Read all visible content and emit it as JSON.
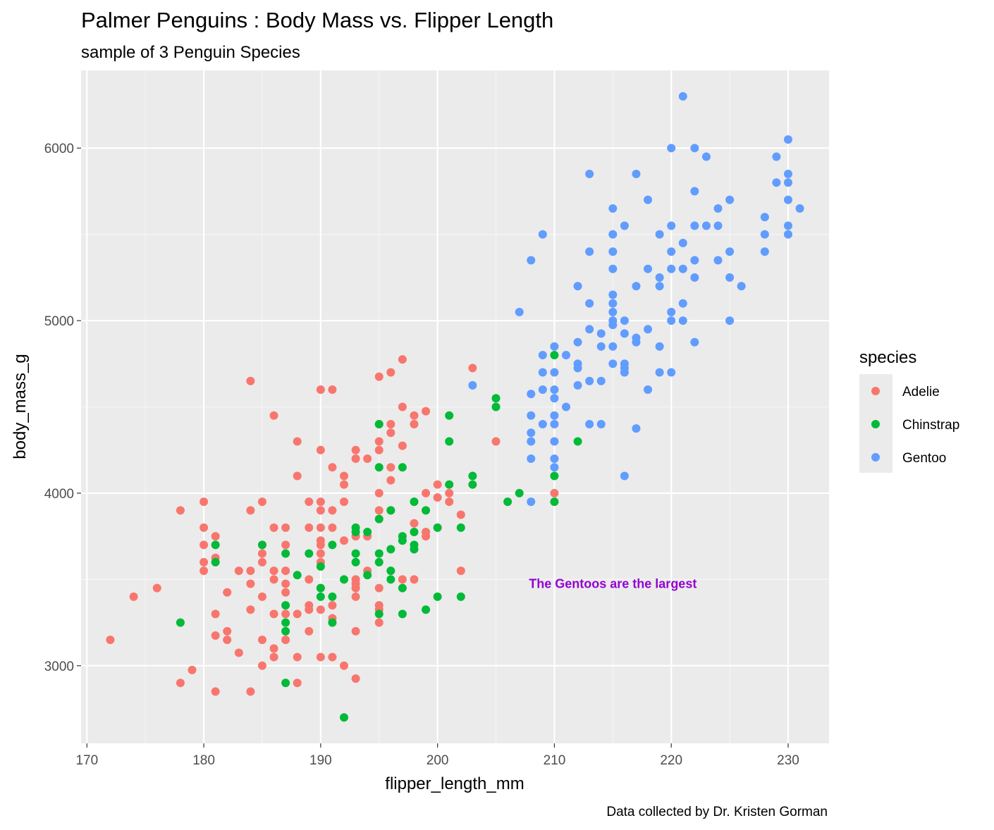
{
  "chart_data": {
    "type": "scatter",
    "title": "Palmer Penguins : Body Mass vs. Flipper Length",
    "subtitle": "sample of 3 Penguin Species",
    "xlabel": "flipper_length_mm",
    "ylabel": "body_mass_g",
    "caption": "Data collected by Dr. Kristen Gorman",
    "xlim": [
      169.5,
      233.5
    ],
    "ylim": [
      2550,
      6450
    ],
    "x_ticks": [
      170,
      180,
      190,
      200,
      210,
      220,
      230
    ],
    "y_ticks": [
      3000,
      4000,
      5000,
      6000
    ],
    "grid": true,
    "legend": {
      "title": "species",
      "placement": "right",
      "entries": [
        "Adelie",
        "Chinstrap",
        "Gentoo"
      ]
    },
    "annotation": {
      "text": "The Gentoos are the largest",
      "x": 215,
      "y": 3480,
      "color": "#9400D3"
    },
    "series": [
      {
        "name": "Adelie",
        "color": "#F8766D",
        "points": [
          [
            172,
            3150
          ],
          [
            174,
            3400
          ],
          [
            176,
            3450
          ],
          [
            178,
            3900
          ],
          [
            178,
            2900
          ],
          [
            179,
            2975
          ],
          [
            180,
            3950
          ],
          [
            180,
            3800
          ],
          [
            180,
            3700
          ],
          [
            180,
            3600
          ],
          [
            180,
            3550
          ],
          [
            181,
            3750
          ],
          [
            181,
            3625
          ],
          [
            181,
            3300
          ],
          [
            181,
            3175
          ],
          [
            181,
            2850
          ],
          [
            182,
            3425
          ],
          [
            182,
            3200
          ],
          [
            182,
            3150
          ],
          [
            183,
            3550
          ],
          [
            183,
            3075
          ],
          [
            184,
            4650
          ],
          [
            184,
            3900
          ],
          [
            184,
            3550
          ],
          [
            184,
            3475
          ],
          [
            184,
            3325
          ],
          [
            184,
            2850
          ],
          [
            185,
            3950
          ],
          [
            185,
            3700
          ],
          [
            185,
            3650
          ],
          [
            185,
            3600
          ],
          [
            185,
            3400
          ],
          [
            185,
            3150
          ],
          [
            185,
            3000
          ],
          [
            186,
            4450
          ],
          [
            186,
            3800
          ],
          [
            186,
            3550
          ],
          [
            186,
            3500
          ],
          [
            186,
            3300
          ],
          [
            186,
            3100
          ],
          [
            186,
            3050
          ],
          [
            187,
            3800
          ],
          [
            187,
            3700
          ],
          [
            187,
            3550
          ],
          [
            187,
            3475
          ],
          [
            187,
            3425
          ],
          [
            187,
            3300
          ],
          [
            187,
            3150
          ],
          [
            188,
            4300
          ],
          [
            188,
            4100
          ],
          [
            188,
            3300
          ],
          [
            188,
            3050
          ],
          [
            188,
            2900
          ],
          [
            189,
            3950
          ],
          [
            189,
            3800
          ],
          [
            189,
            3500
          ],
          [
            189,
            3350
          ],
          [
            189,
            3325
          ],
          [
            189,
            3200
          ],
          [
            190,
            4600
          ],
          [
            190,
            4250
          ],
          [
            190,
            3950
          ],
          [
            190,
            3900
          ],
          [
            190,
            3800
          ],
          [
            190,
            3725
          ],
          [
            190,
            3700
          ],
          [
            190,
            3650
          ],
          [
            190,
            3600
          ],
          [
            190,
            3450
          ],
          [
            190,
            3325
          ],
          [
            190,
            3050
          ],
          [
            191,
            4600
          ],
          [
            191,
            4150
          ],
          [
            191,
            3900
          ],
          [
            191,
            3800
          ],
          [
            191,
            3350
          ],
          [
            191,
            3275
          ],
          [
            191,
            3050
          ],
          [
            192,
            4100
          ],
          [
            192,
            4050
          ],
          [
            192,
            3950
          ],
          [
            192,
            3725
          ],
          [
            192,
            3000
          ],
          [
            193,
            4250
          ],
          [
            193,
            4200
          ],
          [
            193,
            3750
          ],
          [
            193,
            3500
          ],
          [
            193,
            3475
          ],
          [
            193,
            3450
          ],
          [
            193,
            3400
          ],
          [
            193,
            3200
          ],
          [
            193,
            2925
          ],
          [
            194,
            4200
          ],
          [
            194,
            3750
          ],
          [
            194,
            3550
          ],
          [
            195,
            4675
          ],
          [
            195,
            4400
          ],
          [
            195,
            4300
          ],
          [
            195,
            4250
          ],
          [
            195,
            4000
          ],
          [
            195,
            3900
          ],
          [
            195,
            3450
          ],
          [
            195,
            3350
          ],
          [
            195,
            3325
          ],
          [
            195,
            3250
          ],
          [
            196,
            4700
          ],
          [
            196,
            4400
          ],
          [
            196,
            4350
          ],
          [
            196,
            4150
          ],
          [
            196,
            4075
          ],
          [
            196,
            3900
          ],
          [
            197,
            4775
          ],
          [
            197,
            4500
          ],
          [
            197,
            4275
          ],
          [
            197,
            3500
          ],
          [
            198,
            4450
          ],
          [
            198,
            4400
          ],
          [
            198,
            3825
          ],
          [
            198,
            3500
          ],
          [
            199,
            4475
          ],
          [
            199,
            4000
          ],
          [
            199,
            3775
          ],
          [
            199,
            3750
          ],
          [
            200,
            4050
          ],
          [
            200,
            3975
          ],
          [
            201,
            4000
          ],
          [
            201,
            3950
          ],
          [
            202,
            3875
          ],
          [
            202,
            3550
          ],
          [
            203,
            4725
          ],
          [
            205,
            4300
          ],
          [
            210,
            4000
          ]
        ]
      },
      {
        "name": "Chinstrap",
        "color": "#00BA38",
        "points": [
          [
            178,
            3250
          ],
          [
            181,
            3700
          ],
          [
            181,
            3600
          ],
          [
            185,
            3700
          ],
          [
            187,
            3650
          ],
          [
            187,
            3350
          ],
          [
            187,
            3250
          ],
          [
            187,
            3200
          ],
          [
            187,
            2900
          ],
          [
            188,
            3525
          ],
          [
            189,
            3650
          ],
          [
            190,
            3575
          ],
          [
            190,
            3450
          ],
          [
            190,
            3400
          ],
          [
            191,
            3700
          ],
          [
            191,
            3400
          ],
          [
            191,
            3250
          ],
          [
            192,
            3500
          ],
          [
            192,
            2700
          ],
          [
            193,
            3800
          ],
          [
            193,
            3775
          ],
          [
            193,
            3650
          ],
          [
            193,
            3600
          ],
          [
            194,
            3775
          ],
          [
            194,
            3525
          ],
          [
            195,
            4400
          ],
          [
            195,
            4150
          ],
          [
            195,
            3850
          ],
          [
            195,
            3650
          ],
          [
            195,
            3600
          ],
          [
            195,
            3300
          ],
          [
            196,
            3900
          ],
          [
            196,
            3675
          ],
          [
            196,
            3550
          ],
          [
            196,
            3500
          ],
          [
            197,
            4150
          ],
          [
            197,
            3750
          ],
          [
            197,
            3725
          ],
          [
            197,
            3450
          ],
          [
            197,
            3300
          ],
          [
            198,
            3950
          ],
          [
            198,
            3775
          ],
          [
            198,
            3700
          ],
          [
            198,
            3675
          ],
          [
            199,
            3900
          ],
          [
            199,
            3325
          ],
          [
            200,
            3800
          ],
          [
            200,
            3400
          ],
          [
            201,
            4450
          ],
          [
            201,
            4300
          ],
          [
            201,
            4050
          ],
          [
            202,
            3800
          ],
          [
            202,
            3400
          ],
          [
            203,
            4100
          ],
          [
            203,
            4050
          ],
          [
            205,
            4550
          ],
          [
            205,
            4500
          ],
          [
            206,
            3950
          ],
          [
            207,
            4000
          ],
          [
            210,
            4800
          ],
          [
            210,
            4100
          ],
          [
            210,
            3950
          ],
          [
            212,
            4300
          ]
        ]
      },
      {
        "name": "Gentoo",
        "color": "#619CFF",
        "points": [
          [
            203,
            4625
          ],
          [
            207,
            5050
          ],
          [
            208,
            5350
          ],
          [
            208,
            4575
          ],
          [
            208,
            4450
          ],
          [
            208,
            4350
          ],
          [
            208,
            4300
          ],
          [
            208,
            4200
          ],
          [
            208,
            3950
          ],
          [
            209,
            5500
          ],
          [
            209,
            4800
          ],
          [
            209,
            4700
          ],
          [
            209,
            4600
          ],
          [
            209,
            4400
          ],
          [
            210,
            4850
          ],
          [
            210,
            4700
          ],
          [
            210,
            4600
          ],
          [
            210,
            4550
          ],
          [
            210,
            4450
          ],
          [
            210,
            4400
          ],
          [
            210,
            4300
          ],
          [
            210,
            4200
          ],
          [
            210,
            4150
          ],
          [
            211,
            4800
          ],
          [
            211,
            4500
          ],
          [
            212,
            5200
          ],
          [
            212,
            4875
          ],
          [
            212,
            4750
          ],
          [
            212,
            4725
          ],
          [
            212,
            4625
          ],
          [
            213,
            5850
          ],
          [
            213,
            5400
          ],
          [
            213,
            5100
          ],
          [
            213,
            4950
          ],
          [
            213,
            4650
          ],
          [
            213,
            4400
          ],
          [
            214,
            4925
          ],
          [
            214,
            4850
          ],
          [
            214,
            4650
          ],
          [
            214,
            4400
          ],
          [
            215,
            5650
          ],
          [
            215,
            5500
          ],
          [
            215,
            5400
          ],
          [
            215,
            5300
          ],
          [
            215,
            5150
          ],
          [
            215,
            5100
          ],
          [
            215,
            5050
          ],
          [
            215,
            5000
          ],
          [
            215,
            4975
          ],
          [
            215,
            4850
          ],
          [
            215,
            4750
          ],
          [
            216,
            5550
          ],
          [
            216,
            5000
          ],
          [
            216,
            4925
          ],
          [
            216,
            4750
          ],
          [
            216,
            4725
          ],
          [
            216,
            4700
          ],
          [
            216,
            4100
          ],
          [
            217,
            5850
          ],
          [
            217,
            5200
          ],
          [
            217,
            4900
          ],
          [
            217,
            4875
          ],
          [
            217,
            4375
          ],
          [
            218,
            5700
          ],
          [
            218,
            5300
          ],
          [
            218,
            4950
          ],
          [
            218,
            4600
          ],
          [
            219,
            5500
          ],
          [
            219,
            5250
          ],
          [
            219,
            5200
          ],
          [
            219,
            4850
          ],
          [
            219,
            4700
          ],
          [
            220,
            6000
          ],
          [
            220,
            5550
          ],
          [
            220,
            5400
          ],
          [
            220,
            5300
          ],
          [
            220,
            5050
          ],
          [
            220,
            5000
          ],
          [
            220,
            4700
          ],
          [
            221,
            6300
          ],
          [
            221,
            5450
          ],
          [
            221,
            5300
          ],
          [
            221,
            5100
          ],
          [
            221,
            5000
          ],
          [
            222,
            6000
          ],
          [
            222,
            5750
          ],
          [
            222,
            5550
          ],
          [
            222,
            5350
          ],
          [
            222,
            5250
          ],
          [
            222,
            4875
          ],
          [
            223,
            5950
          ],
          [
            223,
            5550
          ],
          [
            224,
            5650
          ],
          [
            224,
            5550
          ],
          [
            224,
            5350
          ],
          [
            225,
            5700
          ],
          [
            225,
            5400
          ],
          [
            225,
            5250
          ],
          [
            225,
            5000
          ],
          [
            226,
            5200
          ],
          [
            228,
            5600
          ],
          [
            228,
            5500
          ],
          [
            228,
            5400
          ],
          [
            229,
            5950
          ],
          [
            229,
            5800
          ],
          [
            230,
            6050
          ],
          [
            230,
            5850
          ],
          [
            230,
            5800
          ],
          [
            230,
            5700
          ],
          [
            230,
            5550
          ],
          [
            230,
            5500
          ],
          [
            231,
            5650
          ]
        ]
      }
    ]
  }
}
